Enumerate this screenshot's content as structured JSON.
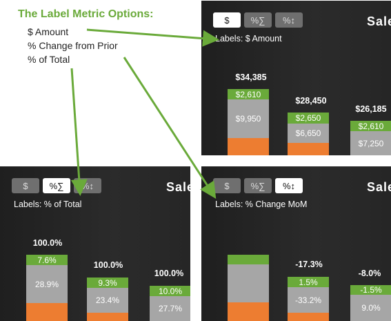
{
  "callout": {
    "title": "The Label Metric Options:",
    "items": [
      "$ Amount",
      "% Change from Prior",
      "% of Total"
    ]
  },
  "colors": {
    "green": "#6aaa3a",
    "gray": "#a6a6a6",
    "orange": "#ed7d31",
    "panel": "#262626",
    "arrow": "#6aaa3a"
  },
  "buttons": {
    "dollar": "$",
    "pct_total": "%∑",
    "pct_change": "%↕"
  },
  "chart_title": "Sale",
  "panels": {
    "amount": {
      "caption": "Labels: $ Amount",
      "active": "dollar",
      "bars": [
        {
          "total": "$34,385",
          "green": "$2,610",
          "gray": "$9,950"
        },
        {
          "total": "$28,450",
          "green": "$2,650",
          "gray": "$6,650"
        },
        {
          "total": "$26,185",
          "green": "$2,610",
          "gray": "$7,250"
        }
      ]
    },
    "pct_total": {
      "caption": "Labels: % of Total",
      "active": "pct_total",
      "bars": [
        {
          "total": "100.0%",
          "green": "7.6%",
          "gray": "28.9%"
        },
        {
          "total": "100.0%",
          "green": "9.3%",
          "gray": "23.4%"
        },
        {
          "total": "100.0%",
          "green": "10.0%",
          "gray": "27.7%"
        }
      ]
    },
    "pct_change": {
      "caption": "Labels: % Change MoM",
      "active": "pct_change",
      "bars": [
        {
          "total": "",
          "green": "",
          "gray": ""
        },
        {
          "total": "-17.3%",
          "green": "1.5%",
          "gray": "-33.2%"
        },
        {
          "total": "-8.0%",
          "green": "-1.5%",
          "gray": "9.0%"
        }
      ]
    }
  }
}
